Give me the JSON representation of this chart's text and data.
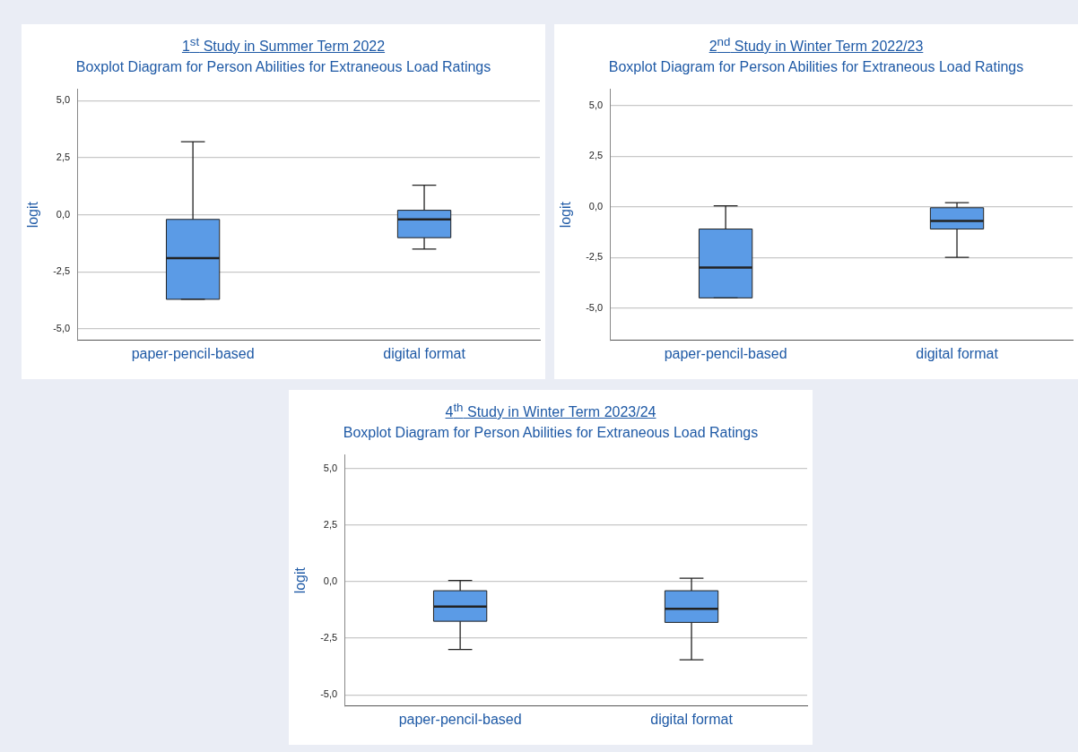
{
  "chart_data": [
    {
      "type": "box",
      "title": "1$^{st}$ Study in Summer Term 2022",
      "subtitle": "Boxplot Diagram for Person Abilities for Extraneous Load Ratings",
      "ylabel": "logit",
      "categories": [
        "paper-pencil-based",
        "digital format"
      ],
      "color": "#5b9be6",
      "boxes": [
        {
          "low": -3.7,
          "q1": -3.7,
          "median": -1.9,
          "q3": -0.2,
          "high": 3.2
        },
        {
          "low": -1.5,
          "q1": -1.0,
          "median": -0.2,
          "q3": 0.2,
          "high": 1.3
        }
      ],
      "ylim": [
        -5.5,
        5.5
      ],
      "yticks": [
        {
          "value": -5,
          "label": "-5,0"
        },
        {
          "value": -2.5,
          "label": "-2,5"
        },
        {
          "value": 0,
          "label": "0,0"
        },
        {
          "value": 2.5,
          "label": "2,5"
        },
        {
          "value": 5,
          "label": "5,0"
        }
      ],
      "grid": "y"
    },
    {
      "type": "box",
      "title": "2$^{nd}$ Study in Winter Term 2022/23",
      "subtitle": "Boxplot Diagram for Person Abilities for Extraneous Load Ratings",
      "ylabel": "logit",
      "categories": [
        "paper-pencil-based",
        "digital format"
      ],
      "color": "#5b9be6",
      "boxes": [
        {
          "low": -4.5,
          "q1": -4.5,
          "median": -3.0,
          "q3": -1.1,
          "high": 0.05
        },
        {
          "low": -2.5,
          "q1": -1.1,
          "median": -0.7,
          "q3": -0.05,
          "high": 0.2
        }
      ],
      "ylim": [
        -6.6,
        5.8
      ],
      "yticks": [
        {
          "value": -5,
          "label": "-5,0"
        },
        {
          "value": -2.5,
          "label": "-2,5"
        },
        {
          "value": 0,
          "label": "0,0"
        },
        {
          "value": 2.5,
          "label": "2,5"
        },
        {
          "value": 5,
          "label": "5,0"
        }
      ],
      "grid": "y"
    },
    {
      "type": "box",
      "title": "4$^{th}$ Study in Winter Term 2023/24",
      "subtitle": "Boxplot Diagram for Person Abilities for Extraneous Load Ratings",
      "ylabel": "logit",
      "categories": [
        "paper-pencil-based",
        "digital format"
      ],
      "color": "#5b9be6",
      "boxes": [
        {
          "low": -3.0,
          "q1": -1.75,
          "median": -1.1,
          "q3": -0.4,
          "high": 0.05
        },
        {
          "low": -3.45,
          "q1": -1.8,
          "median": -1.2,
          "q3": -0.4,
          "high": 0.15
        }
      ],
      "ylim": [
        -5.5,
        5.6
      ],
      "yticks": [
        {
          "value": -5,
          "label": "-5,0"
        },
        {
          "value": -2.5,
          "label": "-2,5"
        },
        {
          "value": 0,
          "label": "0,0"
        },
        {
          "value": 2.5,
          "label": "2,5"
        },
        {
          "value": 5,
          "label": "5,0"
        }
      ],
      "grid": "y"
    }
  ]
}
